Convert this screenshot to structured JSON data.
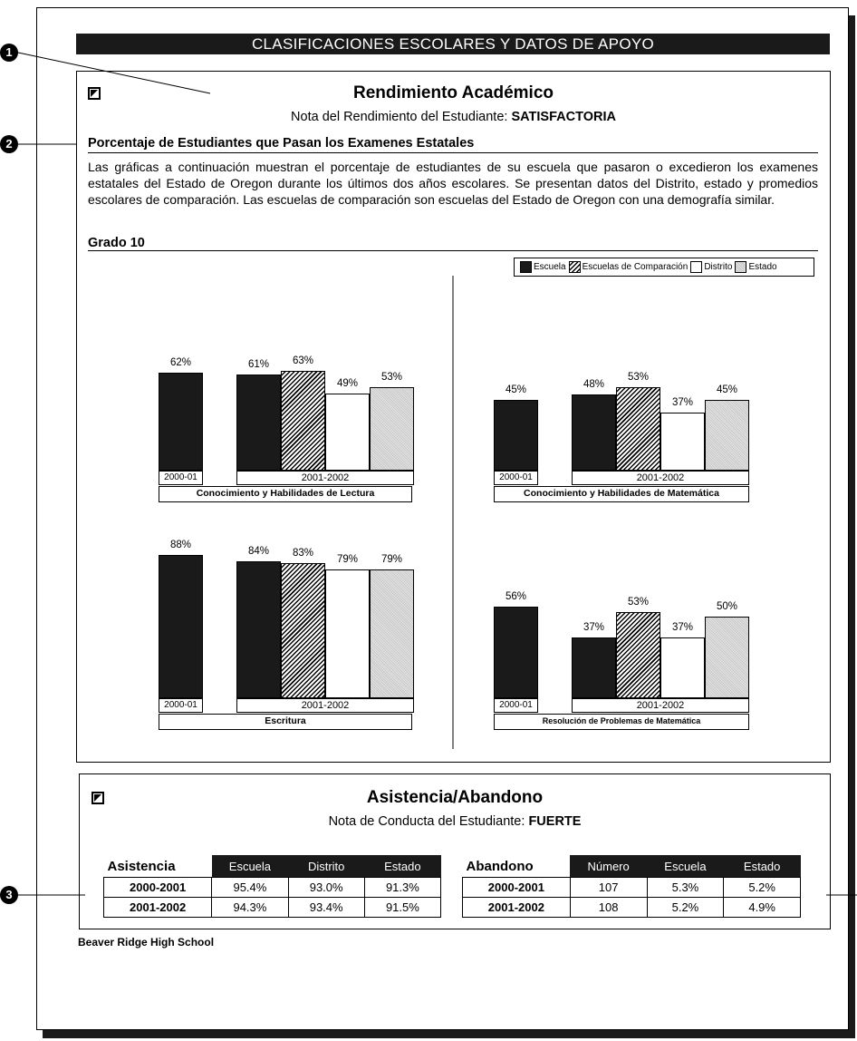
{
  "header": "CLASIFICACIONES ESCOLARES Y DATOS DE APOYO",
  "callouts": [
    "1",
    "2",
    "3"
  ],
  "academic": {
    "title": "Rendimiento Académico",
    "note_label": "Nota del Rendimiento del Estudiante:",
    "note_value": "SATISFACTORIA",
    "section_heading": "Porcentaje de Estudiantes que Pasan los Examenes Estatales",
    "description": "Las gráficas a continuación muestran el porcentaje de estudiantes de su escuela que pasaron o excedieron los examenes estatales del Estado de Oregon durante los últimos dos años escolares. Se presentan datos del Distrito, estado y promedios escolares de comparación. Las escuelas de comparación son escuelas del Estado de Oregon con una demografía similar.",
    "grade_label": "Grado 10",
    "legend": [
      "Escuela",
      "Escuelas de Comparación",
      "Distrito",
      "Estado"
    ]
  },
  "chart_data": [
    {
      "type": "bar",
      "title": "Conocimiento y Habilidades de Lectura",
      "year_labels": [
        "2000-01",
        "2001-2002"
      ],
      "bars": [
        {
          "series": "Escuela",
          "year": "2000-01",
          "value": 62,
          "label": "62%"
        },
        {
          "series": "Escuela",
          "year": "2001-2002",
          "value": 61,
          "label": "61%"
        },
        {
          "series": "Escuelas de Comparación",
          "year": "2001-2002",
          "value": 63,
          "label": "63%"
        },
        {
          "series": "Distrito",
          "year": "2001-2002",
          "value": 49,
          "label": "49%"
        },
        {
          "series": "Estado",
          "year": "2001-2002",
          "value": 53,
          "label": "53%"
        }
      ]
    },
    {
      "type": "bar",
      "title": "Conocimiento y Habilidades de Matemática",
      "year_labels": [
        "2000-01",
        "2001-2002"
      ],
      "bars": [
        {
          "series": "Escuela",
          "year": "2000-01",
          "value": 45,
          "label": "45%"
        },
        {
          "series": "Escuela",
          "year": "2001-2002",
          "value": 48,
          "label": "48%"
        },
        {
          "series": "Escuelas de Comparación",
          "year": "2001-2002",
          "value": 53,
          "label": "53%"
        },
        {
          "series": "Distrito",
          "year": "2001-2002",
          "value": 37,
          "label": "37%"
        },
        {
          "series": "Estado",
          "year": "2001-2002",
          "value": 45,
          "label": "45%"
        }
      ]
    },
    {
      "type": "bar",
      "title": "Escritura",
      "year_labels": [
        "2000-01",
        "2001-2002"
      ],
      "bars": [
        {
          "series": "Escuela",
          "year": "2000-01",
          "value": 88,
          "label": "88%"
        },
        {
          "series": "Escuela",
          "year": "2001-2002",
          "value": 84,
          "label": "84%"
        },
        {
          "series": "Escuelas de Comparación",
          "year": "2001-2002",
          "value": 83,
          "label": "83%"
        },
        {
          "series": "Distrito",
          "year": "2001-2002",
          "value": 79,
          "label": "79%"
        },
        {
          "series": "Estado",
          "year": "2001-2002",
          "value": 79,
          "label": "79%"
        }
      ]
    },
    {
      "type": "bar",
      "title": "Resolución de Problemas de Matemática",
      "year_labels": [
        "2000-01",
        "2001-2002"
      ],
      "bars": [
        {
          "series": "Escuela",
          "year": "2000-01",
          "value": 56,
          "label": "56%"
        },
        {
          "series": "Escuela",
          "year": "2001-2002",
          "value": 37,
          "label": "37%"
        },
        {
          "series": "Escuelas de Comparación",
          "year": "2001-2002",
          "value": 53,
          "label": "53%"
        },
        {
          "series": "Distrito",
          "year": "2001-2002",
          "value": 37,
          "label": "37%"
        },
        {
          "series": "Estado",
          "year": "2001-2002",
          "value": 50,
          "label": "50%"
        }
      ]
    }
  ],
  "attendance": {
    "title": "Asistencia/Abandono",
    "note_label": "Nota de Conducta del Estudiante:",
    "note_value": "FUERTE",
    "asistencia": {
      "heading": "Asistencia",
      "columns": [
        "Escuela",
        "Distrito",
        "Estado"
      ],
      "rows": [
        {
          "year": "2000-2001",
          "values": [
            "95.4%",
            "93.0%",
            "91.3%"
          ]
        },
        {
          "year": "2001-2002",
          "values": [
            "94.3%",
            "93.4%",
            "91.5%"
          ]
        }
      ]
    },
    "abandono": {
      "heading": "Abandono",
      "columns": [
        "Número",
        "Escuela",
        "Estado"
      ],
      "rows": [
        {
          "year": "2000-2001",
          "values": [
            "107",
            "5.3%",
            "5.2%"
          ]
        },
        {
          "year": "2001-2002",
          "values": [
            "108",
            "5.2%",
            "4.9%"
          ]
        }
      ]
    }
  },
  "footer": "Beaver Ridge High School"
}
